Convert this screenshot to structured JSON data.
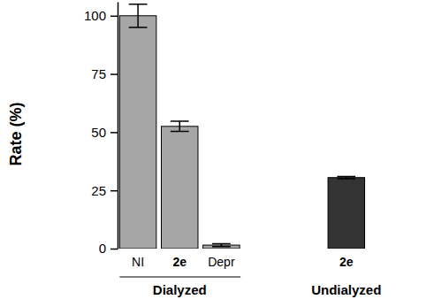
{
  "chart_data": {
    "type": "bar",
    "y_label": "Rate (%)",
    "categories": [
      "NI",
      "2e",
      "Depr",
      "2e"
    ],
    "group_labels": [
      "Dialyzed",
      "Dialyzed",
      "Dialyzed",
      "Undialyzed"
    ],
    "values": [
      100,
      52.5,
      1.5,
      30.5
    ],
    "errors": [
      5,
      2.2,
      0.6,
      0.5
    ],
    "colors": [
      "#a6a6a6",
      "#a6a6a6",
      "#a6a6a6",
      "#333333"
    ],
    "ylim": [
      0,
      106
    ],
    "yticks": [
      0,
      25,
      50,
      75,
      100
    ],
    "grid": false
  }
}
